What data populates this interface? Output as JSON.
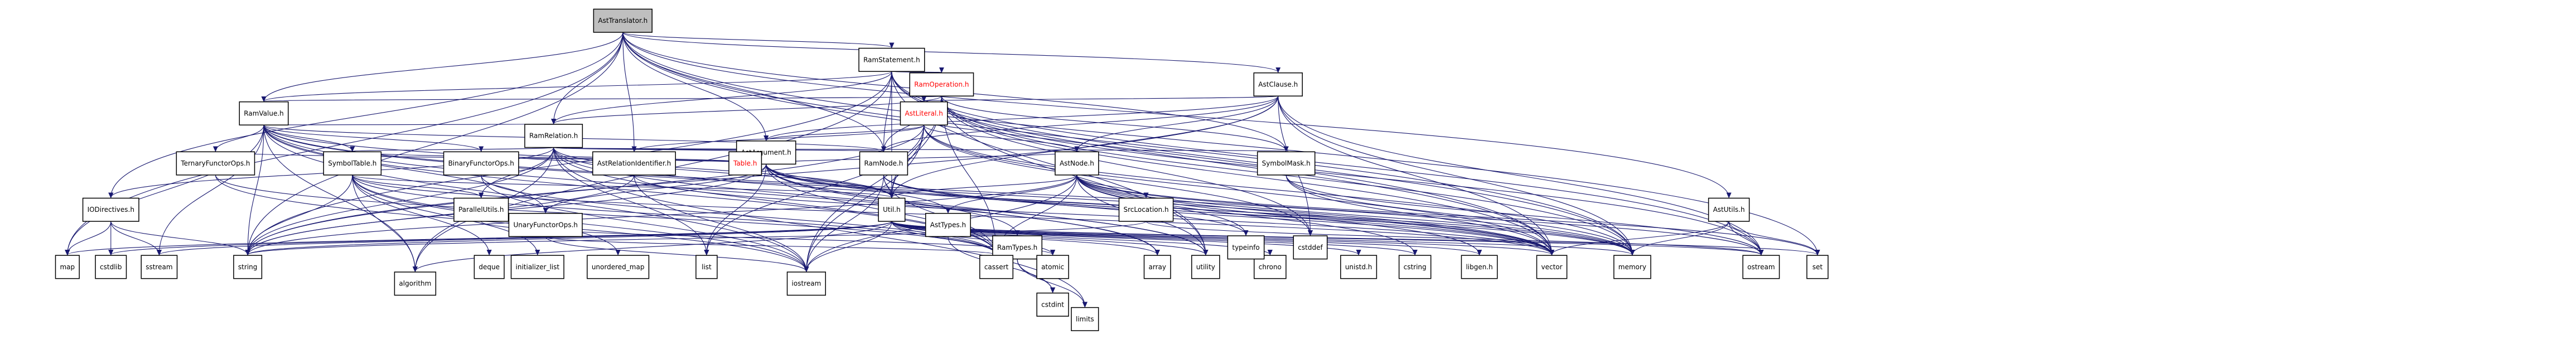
{
  "colors": {
    "root_fill": "#bfbfbf",
    "node_fill": "#ffffff",
    "node_border": "#000000",
    "edge": "#191970",
    "text": "#000000",
    "missing_node_text": "#ff0000"
  },
  "nodes": {
    "ast_translator": "AstTranslator.h",
    "ram_statement": "RamStatement.h",
    "ram_operation": "RamOperation.h",
    "ast_clause": "AstClause.h",
    "ram_value": "RamValue.h",
    "ast_literal": "AstLiteral.h",
    "ram_relation": "RamRelation.h",
    "ast_argument": "AstArgument.h",
    "ternary_functor_ops": "TernaryFunctorOps.h",
    "symbol_table": "SymbolTable.h",
    "binary_functor_ops": "BinaryFunctorOps.h",
    "ast_relation_identifier": "AstRelationIdentifier.h",
    "table": "Table.h",
    "ram_node": "RamNode.h",
    "ast_node": "AstNode.h",
    "symbol_mask": "SymbolMask.h",
    "ast_utils": "AstUtils.h",
    "io_directives": "IODirectives.h",
    "parallel_utils": "ParallelUtils.h",
    "unary_functor_ops": "UnaryFunctorOps.h",
    "util": "Util.h",
    "ast_types": "AstTypes.h",
    "src_location": "SrcLocation.h",
    "ram_types": "RamTypes.h",
    "map": "map",
    "cstdlib": "cstdlib",
    "sstream": "sstream",
    "string": "string",
    "deque": "deque",
    "initializer_list": "initializer_list",
    "unordered_map": "unordered_map",
    "list": "list",
    "algorithm": "algorithm",
    "iostream": "iostream",
    "cassert": "cassert",
    "atomic": "atomic",
    "array": "array",
    "utility": "utility",
    "chrono": "chrono",
    "unistd": "unistd.h",
    "cstring": "cstring",
    "libgen": "libgen.h",
    "typeinfo": "typeinfo",
    "cstddef": "cstddef",
    "vector": "vector",
    "memory": "memory",
    "ostream": "ostream",
    "set": "set",
    "cstdint": "cstdint",
    "limits": "limits"
  }
}
